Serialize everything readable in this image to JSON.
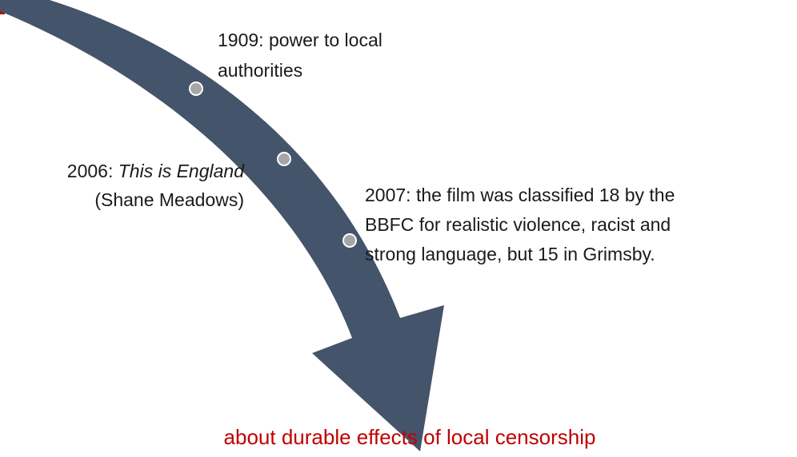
{
  "events": [
    {
      "lines": [
        "1909: power to local",
        "authorities"
      ]
    },
    {
      "lines": [
        "2006: ",
        "This is England",
        "(Shane Meadows)"
      ]
    },
    {
      "lines": [
        "2007: the film was classified 18 by the",
        "BBFC for realistic violence, racist and",
        "strong language, but 15 in Grimsby."
      ]
    }
  ],
  "caption": "about durable effects of local censorship"
}
